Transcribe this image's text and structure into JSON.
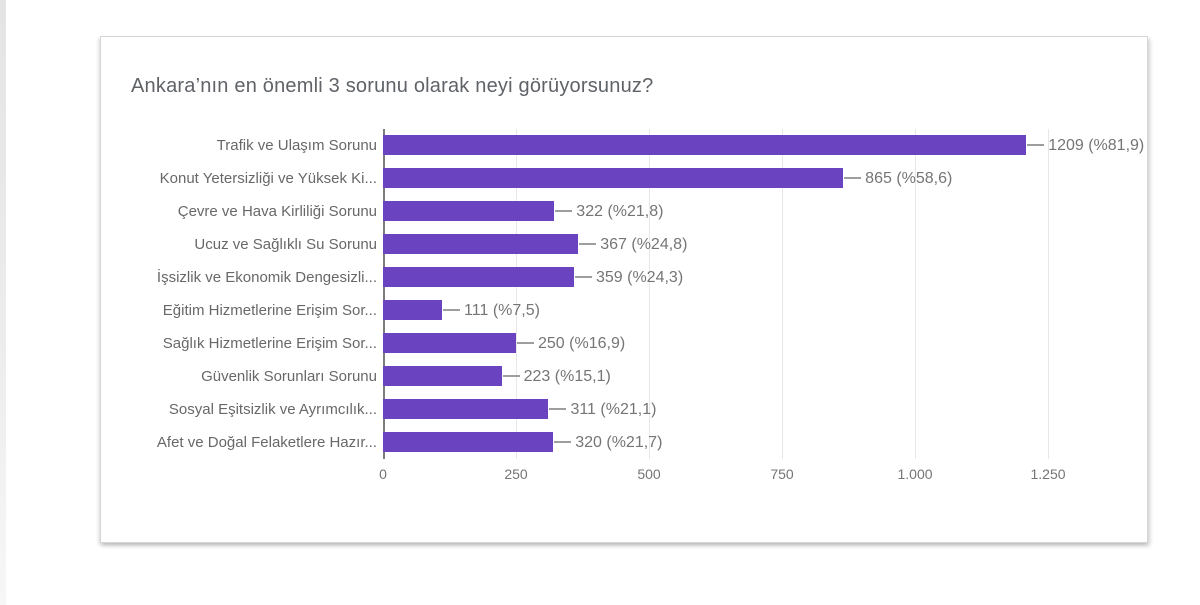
{
  "card": {
    "background": "#ffffff",
    "border_color": "#d6d6d6"
  },
  "chart_data": {
    "type": "bar",
    "orientation": "horizontal",
    "title": "Ankara’nın en önemli 3 sorunu olarak neyi görüyorsunuz?",
    "categories": [
      "Trafik ve Ulaşım Sorunu",
      "Konut Yetersizliği ve Yüksek Ki...",
      "Çevre ve Hava Kirliliği Sorunu",
      "Ucuz ve Sağlıklı Su Sorunu",
      "İşsizlik ve Ekonomik Dengesizli...",
      "Eğitim Hizmetlerine Erişim Sor...",
      "Sağlık Hizmetlerine Erişim Sor...",
      "Güvenlik Sorunları Sorunu",
      "Sosyal Eşitsizlik ve Ayrımcılık...",
      "Afet ve Doğal Felaketlere Hazır..."
    ],
    "values": [
      1209,
      865,
      322,
      367,
      359,
      111,
      250,
      223,
      311,
      320
    ],
    "percentages": [
      81.9,
      58.6,
      21.8,
      24.8,
      24.3,
      7.5,
      16.9,
      15.1,
      21.1,
      21.7
    ],
    "value_labels": [
      "1209 (%81,9)",
      "865 (%58,6)",
      "322 (%21,8)",
      "367 (%24,8)",
      "359 (%24,3)",
      "111 (%7,5)",
      "250 (%16,9)",
      "223 (%15,1)",
      "311 (%21,1)",
      "320 (%21,7)"
    ],
    "xlabel": "",
    "ylabel": "",
    "xlim": [
      0,
      1250
    ],
    "x_ticks": [
      0,
      250,
      500,
      750,
      1000,
      1250
    ],
    "x_tick_labels": [
      "0",
      "250",
      "500",
      "750",
      "1.000",
      "1.250"
    ],
    "bar_color": "#6a43c1",
    "grid": true,
    "legend": false
  }
}
